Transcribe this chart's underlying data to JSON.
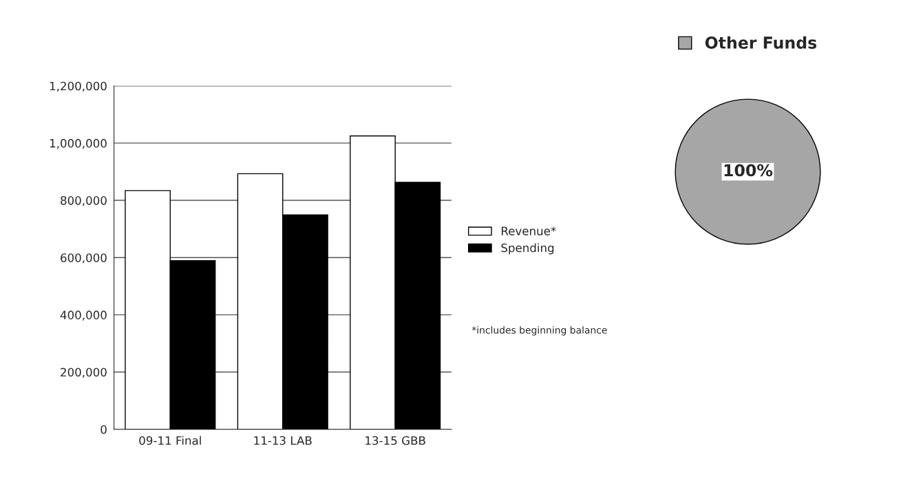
{
  "chart_data": [
    {
      "type": "bar",
      "categories": [
        "09-11 Final",
        "11-13 LAB",
        "13-15 GBB"
      ],
      "series": [
        {
          "name": "Revenue*",
          "color": "#ffffff",
          "values": [
            834000,
            893000,
            1025000
          ]
        },
        {
          "name": "Spending",
          "color": "#000000",
          "values": [
            589000,
            749000,
            863000
          ]
        }
      ],
      "ylim": [
        0,
        1200000
      ],
      "yticks": [
        {
          "value": 0,
          "label": "0"
        },
        {
          "value": 200000,
          "label": "200,000"
        },
        {
          "value": 400000,
          "label": "400,000"
        },
        {
          "value": 600000,
          "label": "600,000"
        },
        {
          "value": 800000,
          "label": "800,000"
        },
        {
          "value": 1000000,
          "label": "1,000,000"
        },
        {
          "value": 1200000,
          "label": "1,200,000"
        }
      ],
      "grid": "y",
      "legend": "right",
      "annotations": [
        "*includes beginning balance"
      ]
    },
    {
      "type": "pie",
      "categories": [
        "Other Funds"
      ],
      "values": [
        100
      ],
      "colors": [
        "#a6a6a6"
      ],
      "value_labels": [
        "100%"
      ],
      "legend": "top"
    }
  ]
}
